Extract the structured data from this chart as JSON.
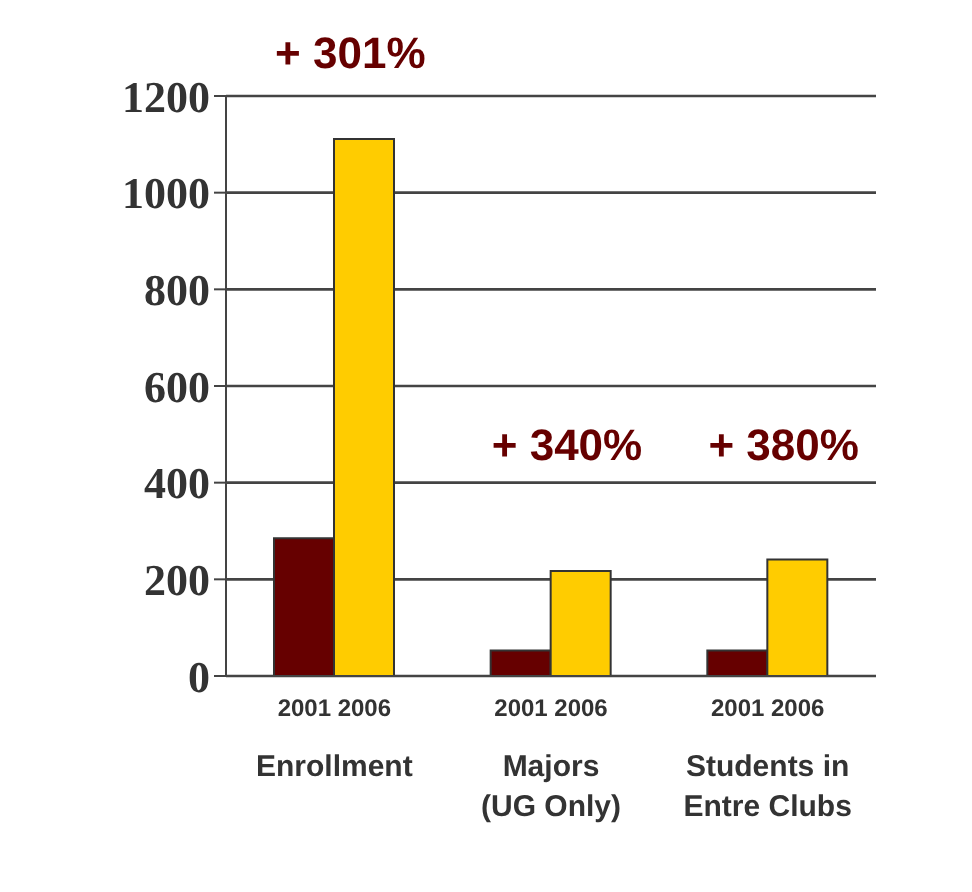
{
  "chart_data": {
    "type": "bar",
    "categories": [
      "Enrollment",
      "Majors\n(UG Only)",
      "Students in\nEntre Clubs"
    ],
    "series": [
      {
        "name": "2001",
        "color": "#660000",
        "values": [
          285,
          53,
          53
        ]
      },
      {
        "name": "2006",
        "color": "#ffcc00",
        "values": [
          1111,
          217,
          241
        ]
      }
    ],
    "ylim": [
      0,
      1200
    ],
    "yticks": [
      0,
      200,
      400,
      600,
      800,
      1000,
      1200
    ],
    "grid": "y",
    "legend": false,
    "annotations": [
      "+ 301%",
      "+ 340%",
      "+ 380%"
    ]
  }
}
